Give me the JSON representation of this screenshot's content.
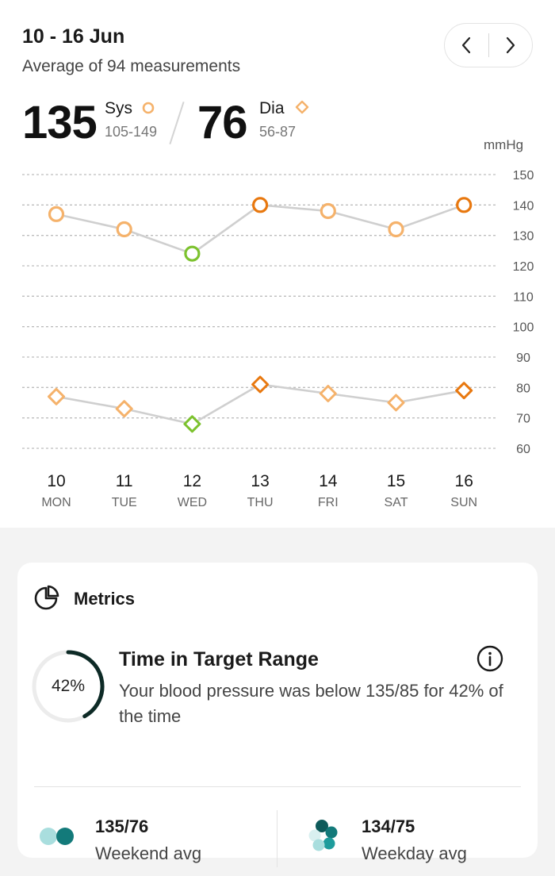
{
  "header": {
    "date_range": "10 - 16 Jun",
    "subtitle": "Average of 94 measurements"
  },
  "nav": {
    "prev_icon": "chevron-left-icon",
    "next_icon": "chevron-right-icon"
  },
  "summary": {
    "sys_value": "135",
    "sys_label": "Sys",
    "sys_range": "105-149",
    "dia_value": "76",
    "dia_label": "Dia",
    "dia_range": "56-87"
  },
  "chart_data": {
    "type": "line",
    "ylabel": "mmHg",
    "ylim": [
      60,
      150
    ],
    "yticks": [
      "150",
      "140",
      "130",
      "120",
      "110",
      "100",
      "90",
      "80",
      "70",
      "60"
    ],
    "grid": true,
    "categories": [
      {
        "day": "10",
        "weekday": "MON"
      },
      {
        "day": "11",
        "weekday": "TUE"
      },
      {
        "day": "12",
        "weekday": "WED"
      },
      {
        "day": "13",
        "weekday": "THU"
      },
      {
        "day": "14",
        "weekday": "FRI"
      },
      {
        "day": "15",
        "weekday": "SAT"
      },
      {
        "day": "16",
        "weekday": "SUN"
      }
    ],
    "series": [
      {
        "name": "Sys",
        "marker": "circle",
        "values": [
          137,
          132,
          124,
          140,
          138,
          132,
          140
        ],
        "colors": [
          "#f5b26b",
          "#f5b26b",
          "#7cc22e",
          "#e8780f",
          "#f5b26b",
          "#f5b26b",
          "#e8780f"
        ]
      },
      {
        "name": "Dia",
        "marker": "diamond",
        "values": [
          77,
          73,
          68,
          81,
          78,
          75,
          79
        ],
        "colors": [
          "#f5b26b",
          "#f5b26b",
          "#7cc22e",
          "#e8780f",
          "#f5b26b",
          "#f5b26b",
          "#e8780f"
        ]
      }
    ],
    "line_color": "#cfcfcf",
    "grid_color": "#bdbdbd"
  },
  "metrics": {
    "title": "Metrics",
    "icon": "pie-chart-icon",
    "target_percent_label": "42%",
    "target_fraction": 0.42,
    "target_title": "Time in Target Range",
    "target_desc": "Your blood pressure was below 135/85 for 42% of the time",
    "info_icon": "info-icon",
    "weekend_value": "135/76",
    "weekend_label": "Weekend avg",
    "weekday_value": "134/75",
    "weekday_label": "Weekday avg"
  },
  "colors": {
    "light_orange": "#f5b26b",
    "dark_orange": "#e8780f",
    "green": "#7cc22e",
    "teal_dark": "#137a7a",
    "teal_mid": "#1e9c9c",
    "teal_light": "#a9dede"
  }
}
